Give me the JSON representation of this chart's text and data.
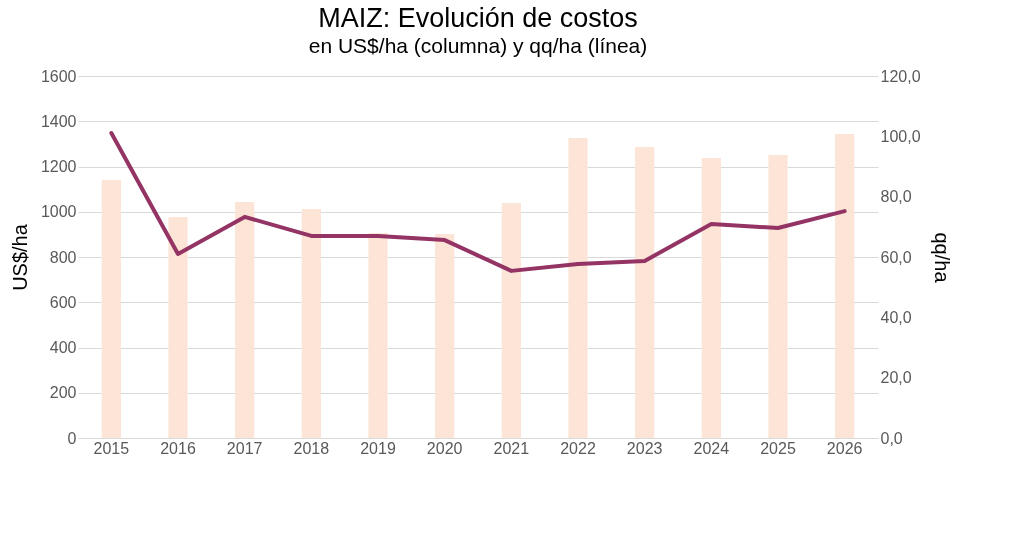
{
  "chart_data": {
    "type": "bar",
    "title": "MAIZ: Evolución de costos",
    "subtitle": "en US$/ha (columna) y qq/ha (línea)",
    "ylabel": "US$/ha",
    "y2label": "qq/ha",
    "categories": [
      "2015",
      "2016",
      "2017",
      "2018",
      "2019",
      "2020",
      "2021",
      "2022",
      "2023",
      "2024",
      "2025",
      "2026"
    ],
    "series": [
      {
        "color": "#fce4d6",
        "values": [
          1140,
          977,
          1043,
          1012,
          906,
          902,
          1039,
          1326,
          1286,
          1238,
          1251,
          1344
        ]
      },
      {
        "type": "line",
        "axis": "y2",
        "color": "#943464",
        "values": [
          101.1,
          61.0,
          73.3,
          67.0,
          67.0,
          65.6,
          55.4,
          57.7,
          58.7,
          70.9,
          69.6,
          75.2
        ]
      }
    ],
    "ylim": [
      0,
      1600
    ],
    "yticks": [
      0,
      200,
      400,
      600,
      800,
      1000,
      1200,
      1400,
      1600
    ],
    "y2lim": [
      0,
      120
    ],
    "y2ticks": [
      {
        "value": 0,
        "label": "0,0"
      },
      {
        "value": 20,
        "label": "20,0"
      },
      {
        "value": 40,
        "label": "40,0"
      },
      {
        "value": 60,
        "label": "60,0"
      },
      {
        "value": 80,
        "label": "80,0"
      },
      {
        "value": 100,
        "label": "100,0"
      },
      {
        "value": 120,
        "label": "120,0"
      }
    ],
    "grid": "y",
    "marker": "none",
    "line_style": "solid"
  }
}
